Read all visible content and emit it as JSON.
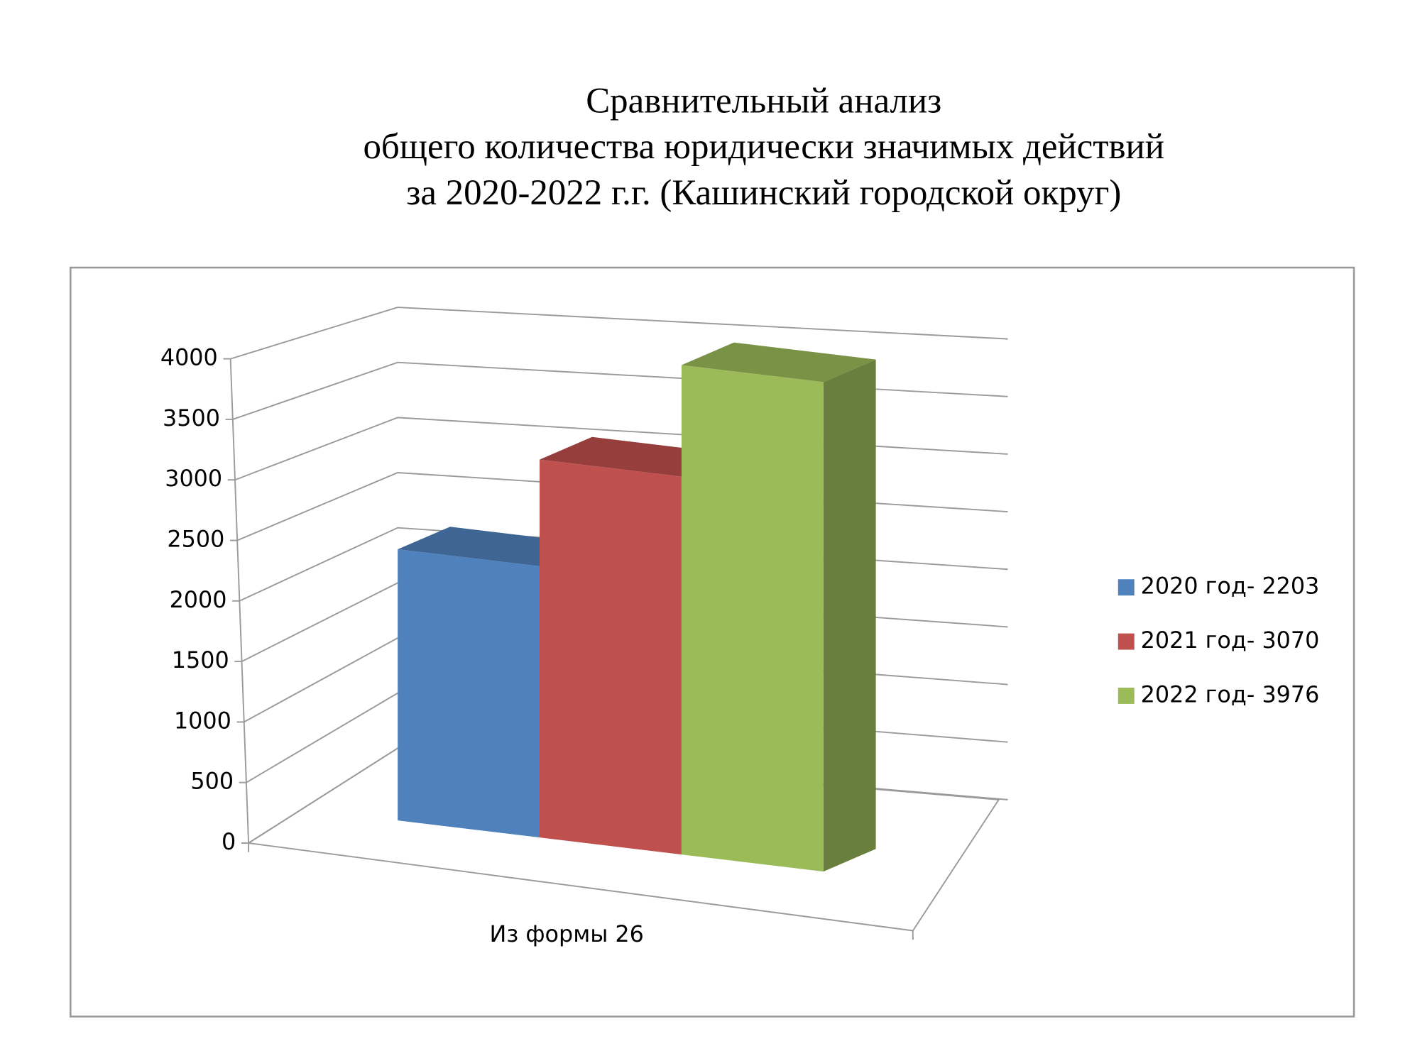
{
  "chart_data": {
    "type": "bar3d",
    "title": [
      "Сравнительный анализ",
      "общего количества юридически значимых действий",
      "за 2020-2022 г.г. (Кашинский городской округ)"
    ],
    "categories": [
      "Из формы 26"
    ],
    "series": [
      {
        "name": "2020 год- 2203",
        "color": "#4f81bd",
        "values": [
          2203
        ]
      },
      {
        "name": "2021 год- 3070",
        "color": "#c0504d",
        "values": [
          3070
        ]
      },
      {
        "name": "2022 год- 3976",
        "color": "#9bbb59",
        "values": [
          3976
        ]
      }
    ],
    "ylim": [
      0,
      4000
    ],
    "yticks": [
      0,
      500,
      1000,
      1500,
      2000,
      2500,
      3000,
      3500,
      4000
    ],
    "grid": true,
    "legend": "right"
  }
}
